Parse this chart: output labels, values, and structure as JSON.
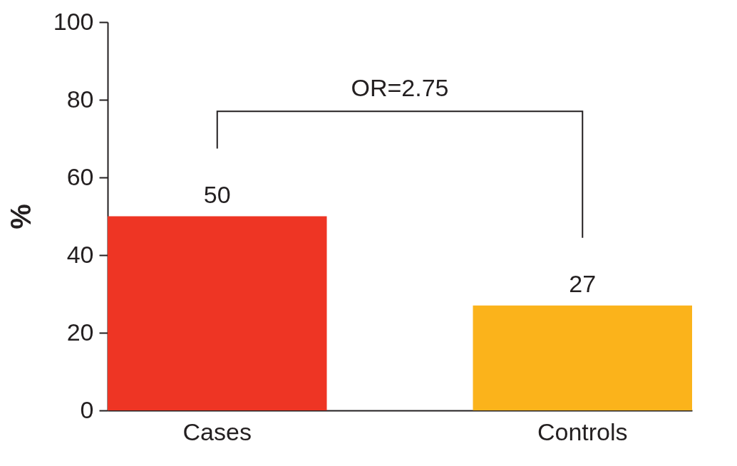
{
  "chart_data": {
    "type": "bar",
    "categories": [
      "Cases",
      "Controls"
    ],
    "values": [
      50,
      27
    ],
    "colors": [
      "#ee3524",
      "#fbb31b"
    ],
    "ylabel": "%",
    "ylim": [
      0,
      100
    ],
    "yticks": [
      0,
      20,
      40,
      60,
      80,
      100
    ],
    "data_labels": true,
    "grid": false,
    "legend": false,
    "annotations": [
      "OR=2.75"
    ]
  }
}
